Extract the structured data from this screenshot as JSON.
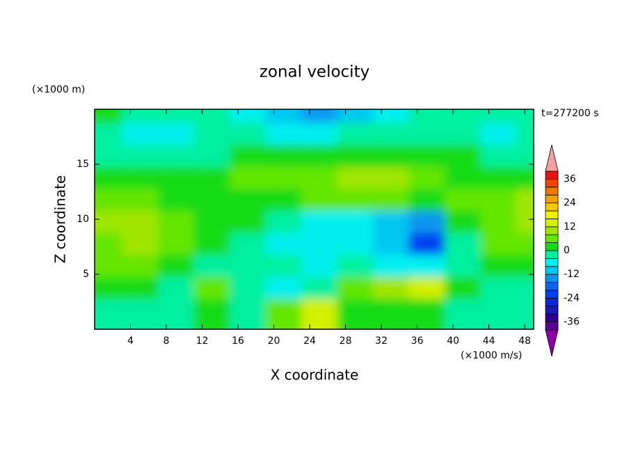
{
  "chart_data": {
    "type": "contour",
    "title": "zonal velocity",
    "x_label": "X coordinate",
    "y_label": "Z coordinate",
    "y_unit": "(×1000 m)",
    "unit": "(×1000 m/s)",
    "time": "t=277200 s",
    "x": [
      2,
      6,
      10,
      14,
      18,
      22,
      26,
      30,
      34,
      38,
      42,
      46,
      50
    ],
    "y": [
      19,
      17,
      15,
      13,
      11,
      9,
      7,
      5,
      3,
      1
    ],
    "values": [
      [
        2,
        -2,
        -2,
        -2,
        -6,
        -10,
        -14,
        -10,
        -6,
        -2,
        -2,
        -2,
        -2
      ],
      [
        -2,
        -6,
        -6,
        -2,
        -2,
        -6,
        -6,
        -2,
        -2,
        -2,
        -2,
        -6,
        -2
      ],
      [
        -2,
        -2,
        -2,
        -2,
        2,
        2,
        2,
        2,
        2,
        2,
        2,
        -2,
        -2
      ],
      [
        2,
        2,
        2,
        2,
        6,
        6,
        6,
        10,
        10,
        6,
        2,
        2,
        2
      ],
      [
        6,
        6,
        2,
        2,
        2,
        2,
        6,
        6,
        6,
        2,
        6,
        6,
        10
      ],
      [
        10,
        10,
        6,
        2,
        2,
        -2,
        -6,
        -6,
        -10,
        -14,
        2,
        6,
        10
      ],
      [
        6,
        10,
        6,
        2,
        -2,
        -6,
        -6,
        -6,
        -10,
        -22,
        -2,
        6,
        6
      ],
      [
        6,
        6,
        2,
        -2,
        -2,
        -2,
        -6,
        -2,
        -6,
        -6,
        -2,
        2,
        2
      ],
      [
        2,
        2,
        -2,
        6,
        -2,
        -6,
        -2,
        6,
        10,
        14,
        2,
        -2,
        -2
      ],
      [
        -2,
        -2,
        -2,
        2,
        -2,
        6,
        14,
        2,
        2,
        2,
        -2,
        -2,
        -2
      ]
    ],
    "xlim": [
      0,
      49
    ],
    "xticks": [
      4,
      8,
      12,
      16,
      20,
      24,
      28,
      32,
      36,
      40,
      44,
      48
    ],
    "ylim": [
      0,
      20
    ],
    "yticks": [
      5,
      10,
      15
    ],
    "levels": [
      -40,
      -36,
      -32,
      -28,
      -24,
      -20,
      -16,
      -12,
      -8,
      -4,
      0,
      4,
      8,
      12,
      16,
      20,
      24,
      28,
      32,
      36,
      40
    ],
    "colors": [
      "#5a0096",
      "#300090",
      "#1a1ab4",
      "#0a28d8",
      "#0040f0",
      "#0a64f0",
      "#0a96f0",
      "#00c8f0",
      "#00f0f0",
      "#00f0a0",
      "#14dc14",
      "#64e600",
      "#a0e600",
      "#d2f000",
      "#f0f000",
      "#f0c800",
      "#f0a000",
      "#f07800",
      "#f04600",
      "#e61414"
    ],
    "extend_colors": [
      "#8c00a8",
      "#f4a0a0"
    ],
    "cbticks": [
      -36,
      -24,
      -12,
      0,
      12,
      24,
      36
    ]
  }
}
